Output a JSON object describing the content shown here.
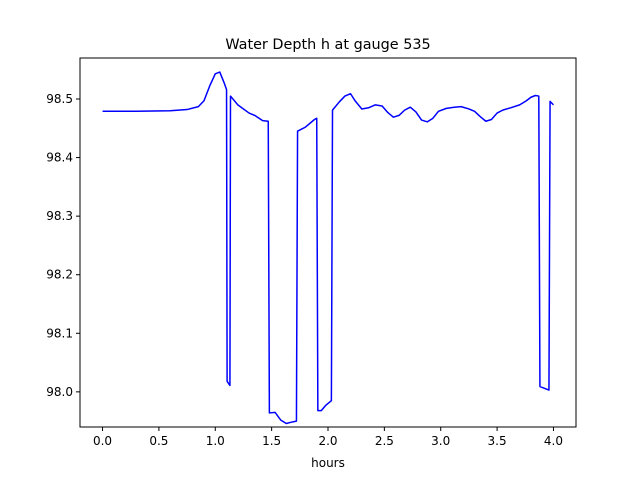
{
  "chart_data": {
    "type": "line",
    "title": "Water Depth h at gauge 535",
    "xlabel": "hours",
    "ylabel": "",
    "xlim": [
      -0.2,
      4.2
    ],
    "ylim": [
      97.94,
      98.57
    ],
    "xticks": [
      0.0,
      0.5,
      1.0,
      1.5,
      2.0,
      2.5,
      3.0,
      3.5,
      4.0
    ],
    "xtick_labels": [
      "0.0",
      "0.5",
      "1.0",
      "1.5",
      "2.0",
      "2.5",
      "3.0",
      "3.5",
      "4.0"
    ],
    "yticks": [
      98.0,
      98.1,
      98.2,
      98.3,
      98.4,
      98.5
    ],
    "ytick_labels": [
      "98.0",
      "98.1",
      "98.2",
      "98.3",
      "98.4",
      "98.5"
    ],
    "grid": false,
    "legend": "none",
    "series": [
      {
        "color": "#0000ff",
        "x": [
          0.0,
          0.3,
          0.6,
          0.75,
          0.85,
          0.9,
          0.95,
          1.0,
          1.04,
          1.08,
          1.1,
          1.105,
          1.13,
          1.135,
          1.2,
          1.3,
          1.35,
          1.42,
          1.47,
          1.48,
          1.53,
          1.58,
          1.63,
          1.67,
          1.72,
          1.73,
          1.8,
          1.88,
          1.9,
          1.91,
          1.94,
          1.98,
          2.03,
          2.04,
          2.1,
          2.15,
          2.2,
          2.24,
          2.3,
          2.36,
          2.42,
          2.48,
          2.53,
          2.58,
          2.63,
          2.68,
          2.73,
          2.78,
          2.83,
          2.88,
          2.93,
          2.98,
          3.05,
          3.12,
          3.18,
          3.25,
          3.3,
          3.35,
          3.4,
          3.45,
          3.5,
          3.55,
          3.62,
          3.7,
          3.76,
          3.8,
          3.84,
          3.87,
          3.88,
          3.96,
          3.97,
          4.0
        ],
        "y": [
          98.479,
          98.479,
          98.48,
          98.482,
          98.487,
          98.497,
          98.522,
          98.543,
          98.546,
          98.527,
          98.516,
          98.018,
          98.011,
          98.505,
          98.49,
          98.476,
          98.472,
          98.463,
          98.462,
          97.964,
          97.965,
          97.952,
          97.946,
          97.948,
          97.95,
          98.445,
          98.452,
          98.465,
          98.467,
          97.968,
          97.968,
          97.977,
          97.985,
          98.481,
          98.495,
          98.505,
          98.509,
          98.497,
          98.483,
          98.485,
          98.49,
          98.488,
          98.477,
          98.469,
          98.472,
          98.481,
          98.486,
          98.478,
          98.464,
          98.461,
          98.467,
          98.479,
          98.484,
          98.486,
          98.487,
          98.483,
          98.479,
          98.47,
          98.462,
          98.465,
          98.476,
          98.481,
          98.485,
          98.49,
          98.497,
          98.503,
          98.506,
          98.505,
          98.009,
          98.003,
          98.496,
          98.49
        ]
      }
    ]
  }
}
